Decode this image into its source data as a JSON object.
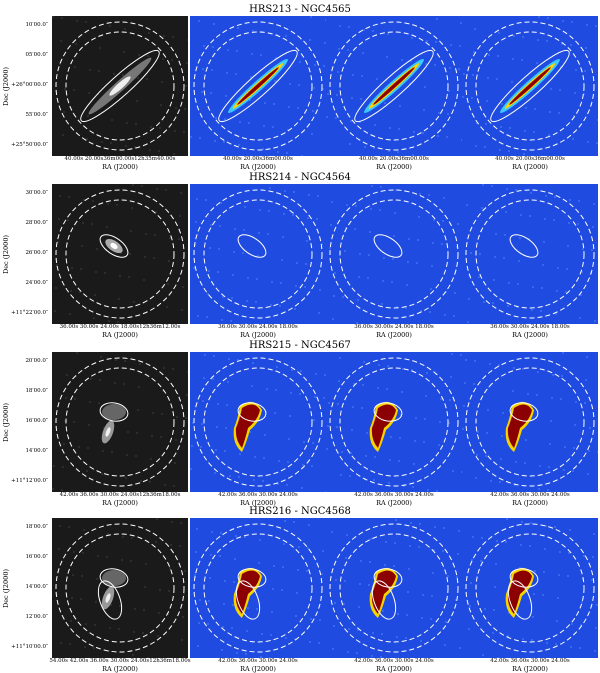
{
  "rows": [
    {
      "title": "HRS213 - NGC4565",
      "y_ticks": [
        "10′00.0″",
        "05′00.0″",
        "+26°00′00.0″",
        "55′00.0″",
        "+25°50′00.0″"
      ],
      "y_label": "Dec (J2000)",
      "x_ticks": [
        "40.00s 20.00s36m00.00s12h35m40.00s",
        "40.00s 20.00s36m00.00s",
        "40.00s 20.00s36m00.00s",
        "40.00s 20.00s36m00.00s"
      ],
      "x_label": "RA (J2000)",
      "galaxy_shape": "edge-on-disk"
    },
    {
      "title": "HRS214 - NGC4564",
      "y_ticks": [
        "30′00.0″",
        "28′00.0″",
        "26′00.0″",
        "24′00.0″",
        "+11°22′00.0″"
      ],
      "y_label": "Dec (J2000)",
      "x_ticks": [
        "36.00s 30.00s 24.00s 18.00s12h36m12.00s",
        "36.00s 30.00s 24.00s 18.00s",
        "36.00s 30.00s 24.00s 18.00s",
        "36.00s 30.00s 24.00s 18.00s"
      ],
      "x_label": "RA (J2000)",
      "galaxy_shape": "faint"
    },
    {
      "title": "HRS215 - NGC4567",
      "y_ticks": [
        "20′00.0″",
        "18′00.0″",
        "16′00.0″",
        "14′00.0″",
        "+11°12′00.0″"
      ],
      "y_label": "Dec (J2000)",
      "x_ticks": [
        "42.00s 36.00s 30.00s 24.00s12h36m18.00s",
        "42.00s 36.00s 30.00s 24.00s",
        "42.00s 36.00s 30.00s 24.00s",
        "42.00s 36.00s 30.00s 24.00s"
      ],
      "x_label": "RA (J2000)",
      "galaxy_shape": "crescent"
    },
    {
      "title": "HRS216 - NGC4568",
      "y_ticks": [
        "18′00.0″",
        "16′00.0″",
        "14′00.0″",
        "12′00.0″",
        "+11°10′00.0″"
      ],
      "y_label": "Dec (J2000)",
      "x_ticks": [
        "54.00s 42.00s 36.00s 30.00s 24.00s12h36m18.00s",
        "42.00s 36.00s 30.00s 24.00s",
        "42.00s 36.00s 30.00s 24.00s",
        "42.00s 36.00s 30.00s 24.00s"
      ],
      "x_label": "RA (J2000)",
      "galaxy_shape": "crescent"
    }
  ],
  "colors": {
    "optical_bg": "#1a1a1a",
    "map_bg": "#1f4be0",
    "map_core": "#8b0000",
    "contour": "#ffffff"
  }
}
